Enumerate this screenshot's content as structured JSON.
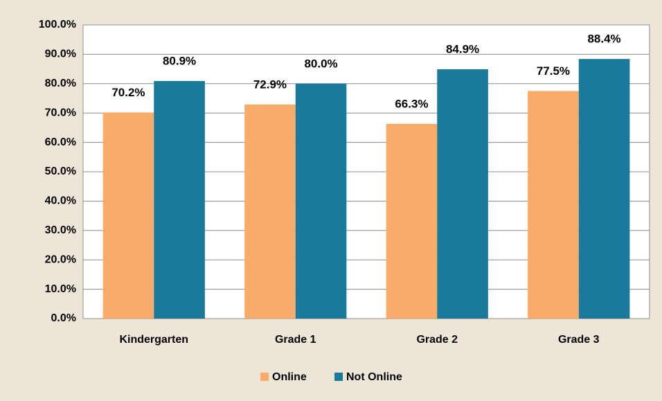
{
  "chart_data": {
    "type": "bar",
    "categories": [
      "Kindergarten",
      "Grade 1",
      "Grade 2",
      "Grade 3"
    ],
    "series": [
      {
        "name": "Online",
        "color": "#f9ab69",
        "values": [
          70.2,
          72.9,
          66.3,
          77.5
        ],
        "value_labels": [
          "70.2%",
          "72.9%",
          "66.3%",
          "77.5%"
        ]
      },
      {
        "name": "Not Online",
        "color": "#1b7a9c",
        "values": [
          80.9,
          80.0,
          84.9,
          88.4
        ],
        "value_labels": [
          "80.9%",
          "80.0%",
          "84.9%",
          "88.4%"
        ]
      }
    ],
    "ylim": [
      0,
      100
    ],
    "yticks": [
      {
        "value": 0,
        "label": "0.0%"
      },
      {
        "value": 10,
        "label": "10.0%"
      },
      {
        "value": 20,
        "label": "20.0%"
      },
      {
        "value": 30,
        "label": "30.0%"
      },
      {
        "value": 40,
        "label": "40.0%"
      },
      {
        "value": 50,
        "label": "50.0%"
      },
      {
        "value": 60,
        "label": "60.0%"
      },
      {
        "value": 70,
        "label": "70.0%"
      },
      {
        "value": 80,
        "label": "80.0%"
      },
      {
        "value": 90,
        "label": "90.0%"
      },
      {
        "value": 100,
        "label": "100.0%"
      }
    ],
    "grid": true,
    "legend": "bottom"
  }
}
